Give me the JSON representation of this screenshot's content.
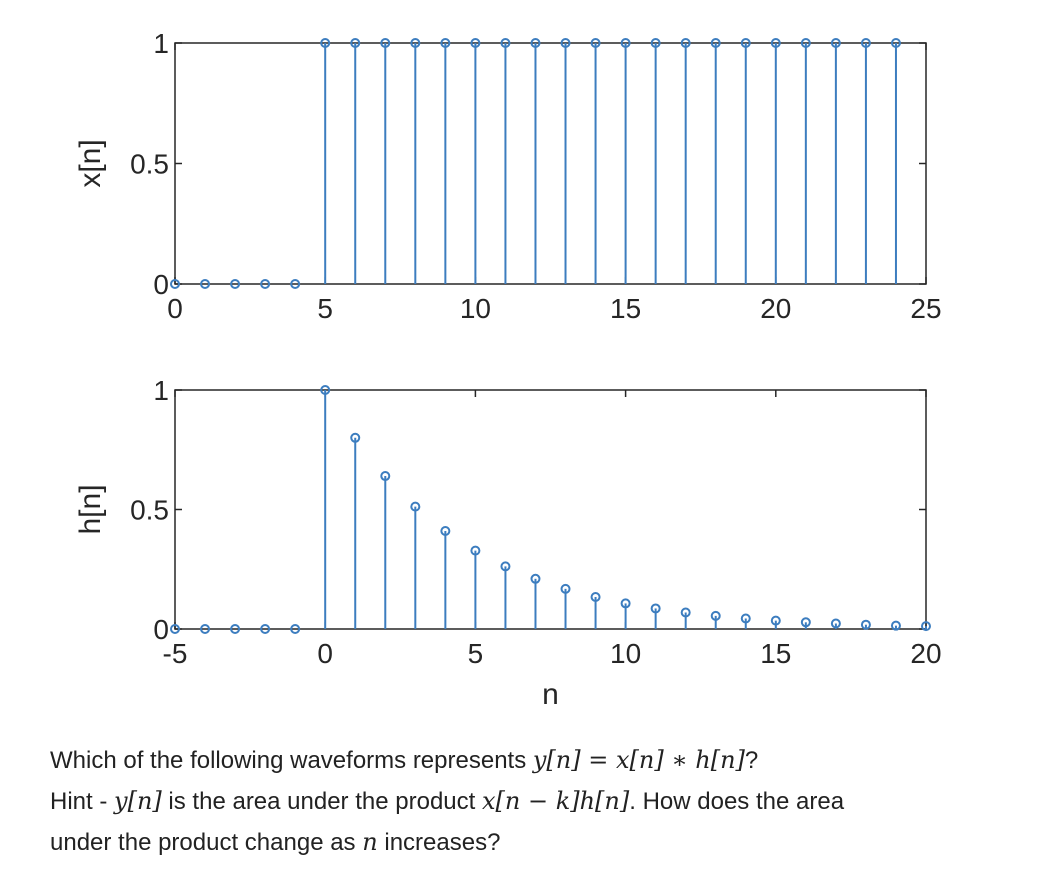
{
  "chart_data": [
    {
      "type": "stem",
      "ylabel": "x[n]",
      "xlabel": "",
      "xlim": [
        0,
        25
      ],
      "ylim": [
        0,
        1
      ],
      "xticks": [
        "0",
        "5",
        "10",
        "15",
        "20",
        "25"
      ],
      "yticks": [
        "0",
        "0.5",
        "1"
      ],
      "x": [
        0,
        1,
        2,
        3,
        4,
        5,
        6,
        7,
        8,
        9,
        10,
        11,
        12,
        13,
        14,
        15,
        16,
        17,
        18,
        19,
        20,
        21,
        22,
        23,
        24
      ],
      "y": [
        0,
        0,
        0,
        0,
        0,
        1,
        1,
        1,
        1,
        1,
        1,
        1,
        1,
        1,
        1,
        1,
        1,
        1,
        1,
        1,
        1,
        1,
        1,
        1,
        1
      ],
      "color": "#3c7dbf"
    },
    {
      "type": "stem",
      "ylabel": "h[n]",
      "xlabel": "n",
      "xlim": [
        -5,
        20
      ],
      "ylim": [
        0,
        1
      ],
      "xticks": [
        "-5",
        "0",
        "5",
        "10",
        "15",
        "20"
      ],
      "yticks": [
        "0",
        "0.5",
        "1"
      ],
      "x": [
        -5,
        -4,
        -3,
        -2,
        -1,
        0,
        1,
        2,
        3,
        4,
        5,
        6,
        7,
        8,
        9,
        10,
        11,
        12,
        13,
        14,
        15,
        16,
        17,
        18,
        19,
        20
      ],
      "y": [
        0,
        0,
        0,
        0,
        0,
        1,
        0.8,
        0.64,
        0.512,
        0.41,
        0.328,
        0.262,
        0.21,
        0.168,
        0.134,
        0.107,
        0.086,
        0.069,
        0.055,
        0.044,
        0.035,
        0.028,
        0.023,
        0.018,
        0.014,
        0.012
      ],
      "color": "#3c7dbf"
    }
  ],
  "question": {
    "line1_a": "Which of the following waveforms represents ",
    "line1_math": "y[n] = x[n] ∗ h[n]",
    "line1_b": "?",
    "line2_a": "Hint - ",
    "line2_math1": "y[n]",
    "line2_b": " is the area under the product ",
    "line2_math2": "x[n − k]h[n]",
    "line2_c": ". How does the area",
    "line3_a": "under the product change as ",
    "line3_math": "n",
    "line3_b": " increases?"
  }
}
